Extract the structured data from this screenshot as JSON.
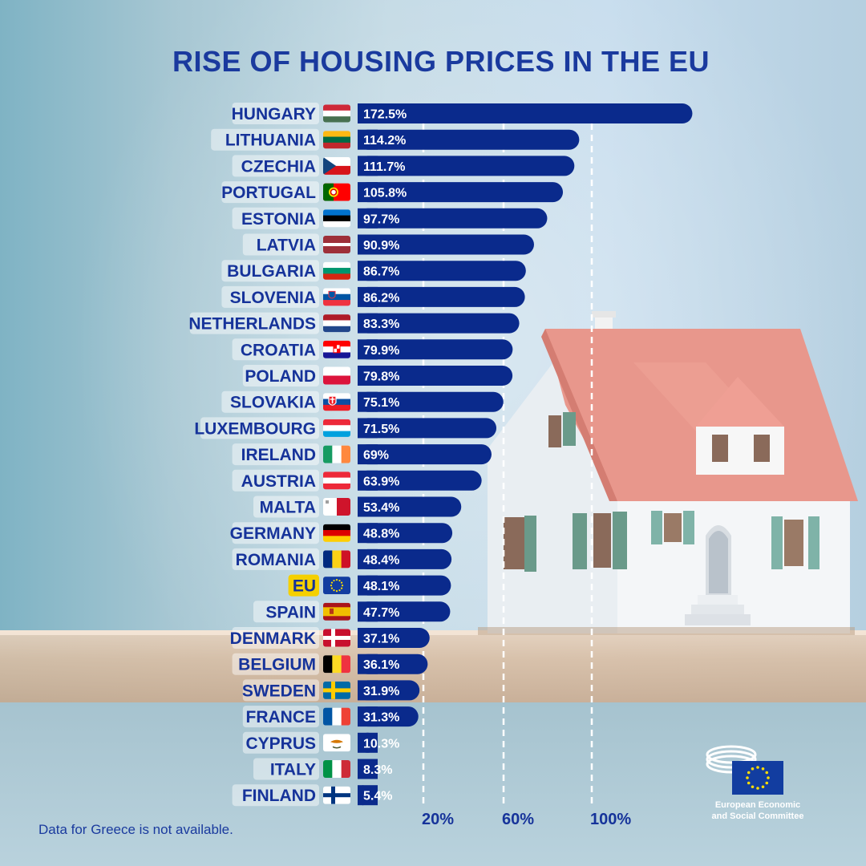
{
  "title": "RISE OF HOUSING PRICES IN THE EU",
  "footnote": "Data for Greece is not available.",
  "logo": {
    "line1": "European Economic",
    "line2": "and Social Committee"
  },
  "colors": {
    "bar": "#0a2a8c",
    "title": "#1a3a9e",
    "eu_highlight": "#f5d000",
    "label_bg": "#ffffff"
  },
  "chart_data": {
    "type": "bar",
    "orientation": "horizontal",
    "title": "RISE OF HOUSING PRICES IN THE EU",
    "categories": [
      "HUNGARY",
      "LITHUANIA",
      "CZECHIA",
      "PORTUGAL",
      "ESTONIA",
      "LATVIA",
      "BULGARIA",
      "SLOVENIA",
      "NETHERLANDS",
      "CROATIA",
      "POLAND",
      "SLOVAKIA",
      "LUXEMBOURG",
      "IRELAND",
      "AUSTRIA",
      "MALTA",
      "GERMANY",
      "ROMANIA",
      "EU",
      "SPAIN",
      "DENMARK",
      "BELGIUM",
      "SWEDEN",
      "FRANCE",
      "CYPRUS",
      "ITALY",
      "FINLAND"
    ],
    "values": [
      172.5,
      114.2,
      111.7,
      105.8,
      97.7,
      90.9,
      86.7,
      86.2,
      83.3,
      79.9,
      79.8,
      75.1,
      71.5,
      69,
      63.9,
      53.4,
      48.8,
      48.4,
      48.1,
      47.7,
      37.1,
      36.1,
      31.9,
      31.3,
      10.3,
      8.3,
      5.4
    ],
    "value_labels": [
      "172.5%",
      "114.2%",
      "111.7%",
      "105.8%",
      "97.7%",
      "90.9%",
      "86.7%",
      "86.2%",
      "83.3%",
      "79.9%",
      "79.8%",
      "75.1%",
      "71.5%",
      "69%",
      "63.9%",
      "53.4%",
      "48.8%",
      "48.4%",
      "48.1%",
      "47.7%",
      "37.1%",
      "36.1%",
      "31.9%",
      "31.3%",
      "10.3%",
      "8.3%",
      "5.4%"
    ],
    "flags": [
      "hungary-flag",
      "lithuania-flag",
      "czechia-flag",
      "portugal-flag",
      "estonia-flag",
      "latvia-flag",
      "bulgaria-flag",
      "slovenia-flag",
      "netherlands-flag",
      "croatia-flag",
      "poland-flag",
      "slovakia-flag",
      "luxembourg-flag",
      "ireland-flag",
      "austria-flag",
      "malta-flag",
      "germany-flag",
      "romania-flag",
      "eu-flag",
      "spain-flag",
      "denmark-flag",
      "belgium-flag",
      "sweden-flag",
      "france-flag",
      "cyprus-flag",
      "italy-flag",
      "finland-flag"
    ],
    "highlight": "EU",
    "reference_lines": [
      20,
      60,
      100
    ],
    "tick_labels": [
      "20%",
      "60%",
      "100%"
    ],
    "grid": false
  }
}
